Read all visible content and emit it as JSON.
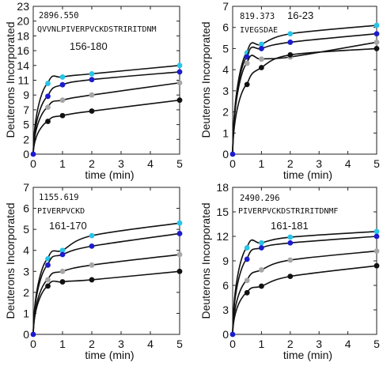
{
  "chart_data": [
    {
      "type": "scatter",
      "mass": "2896.550",
      "sequence": "QVVNLPIVERPVCKDSTRIRITDNM",
      "residue_range": "156-180",
      "xlabel": "time (min)",
      "ylabel": "Deuterons Incorporated",
      "xlim": [
        0,
        5
      ],
      "ylim": [
        0,
        23
      ],
      "x_ticks": [
        "0",
        "1",
        "2",
        "3",
        "4",
        "5"
      ],
      "y_ticks": [
        "0",
        "2",
        "5",
        "7",
        "9",
        "11",
        "14",
        "16",
        "18",
        "20",
        "23"
      ],
      "x": [
        0,
        0.5,
        1,
        2,
        5
      ],
      "series": [
        {
          "color": "#29c4e8",
          "values": [
            0,
            11.0,
            12.0,
            12.5,
            13.8
          ]
        },
        {
          "color": "#1c1ccf",
          "values": [
            0,
            9.0,
            10.8,
            11.6,
            12.8
          ]
        },
        {
          "color": "#a6a6a6",
          "values": [
            0,
            7.3,
            8.4,
            9.2,
            11.1
          ]
        },
        {
          "color": "#111111",
          "values": [
            0,
            5.1,
            6.0,
            6.7,
            8.4
          ]
        }
      ]
    },
    {
      "type": "scatter",
      "mass": "819.373",
      "sequence": "IVEGSDAE",
      "residue_range": "16-23",
      "xlabel": "time (min)",
      "ylabel": "Deuterons Incorporated",
      "xlim": [
        0,
        5
      ],
      "ylim": [
        0,
        7
      ],
      "x_ticks": [
        "0",
        "1",
        "2",
        "3",
        "4",
        "5"
      ],
      "y_ticks": [
        "0",
        "1",
        "2",
        "3",
        "4",
        "5",
        "6",
        "7"
      ],
      "x": [
        0,
        0.5,
        1,
        2,
        5
      ],
      "series": [
        {
          "color": "#29c4e8",
          "values": [
            0,
            4.8,
            5.2,
            5.7,
            6.1
          ]
        },
        {
          "color": "#1c1ccf",
          "values": [
            0,
            4.6,
            5.0,
            5.3,
            5.7
          ]
        },
        {
          "color": "#a6a6a6",
          "values": [
            0,
            4.3,
            4.5,
            4.6,
            5.3
          ]
        },
        {
          "color": "#111111",
          "values": [
            0,
            3.3,
            4.1,
            4.7,
            5.0
          ]
        }
      ]
    },
    {
      "type": "scatter",
      "mass": "1155.619",
      "sequence": "PIVERPVCKD",
      "residue_range": "161-170",
      "xlabel": "time (min)",
      "ylabel": "Deuterons Incorporated",
      "xlim": [
        0,
        5
      ],
      "ylim": [
        0,
        7
      ],
      "x_ticks": [
        "0",
        "1",
        "2",
        "3",
        "4",
        "5"
      ],
      "y_ticks": [
        "0",
        "1",
        "2",
        "3",
        "4",
        "5",
        "6",
        "7"
      ],
      "x": [
        0,
        0.5,
        1,
        2,
        5
      ],
      "series": [
        {
          "color": "#29c4e8",
          "values": [
            0,
            3.6,
            4.0,
            4.7,
            5.3
          ]
        },
        {
          "color": "#1c1ccf",
          "values": [
            0,
            3.3,
            3.8,
            4.2,
            4.8
          ]
        },
        {
          "color": "#a6a6a6",
          "values": [
            0,
            2.6,
            3.0,
            3.3,
            3.8
          ]
        },
        {
          "color": "#111111",
          "values": [
            0,
            2.3,
            2.5,
            2.6,
            3.0
          ]
        }
      ]
    },
    {
      "type": "scatter",
      "mass": "2490.296",
      "sequence": "PIVERPVCKDSTRIRITDNMF",
      "residue_range": "161-181",
      "xlabel": "time (min)",
      "ylabel": "Deuterons Incorporated",
      "xlim": [
        0,
        5
      ],
      "ylim": [
        0,
        18
      ],
      "x_ticks": [
        "0",
        "1",
        "2",
        "3",
        "4",
        "5"
      ],
      "y_ticks": [
        "0",
        "3",
        "6",
        "9",
        "12",
        "15",
        "18"
      ],
      "x": [
        0,
        0.5,
        1,
        2,
        5
      ],
      "series": [
        {
          "color": "#29c4e8",
          "values": [
            0,
            10.6,
            11.2,
            11.9,
            12.6
          ]
        },
        {
          "color": "#1c1ccf",
          "values": [
            0,
            9.2,
            10.6,
            11.2,
            12.0
          ]
        },
        {
          "color": "#a6a6a6",
          "values": [
            0,
            6.6,
            7.9,
            9.1,
            10.2
          ]
        },
        {
          "color": "#111111",
          "values": [
            0,
            5.1,
            5.9,
            7.1,
            8.4
          ]
        }
      ]
    }
  ]
}
